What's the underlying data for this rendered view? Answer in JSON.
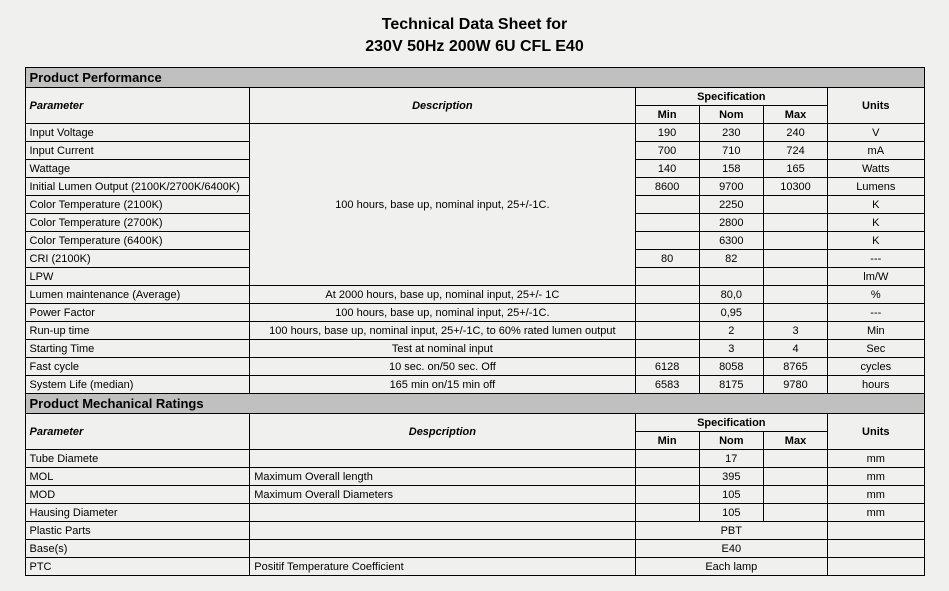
{
  "title_line1": "Technical Data Sheet for",
  "title_line2": "230V 50Hz 200W 6U CFL E40",
  "sections": {
    "performance": {
      "section_title": "Product Performance",
      "headers": {
        "parameter": "Parameter",
        "description": "Description",
        "specification": "Specification",
        "min": "Min",
        "nom": "Nom",
        "max": "Max",
        "units": "Units"
      },
      "shared_desc": "100 hours, base up, nominal input, 25+/-1C.",
      "shared_rows": [
        {
          "param": "Input Voltage",
          "min": "190",
          "nom": "230",
          "max": "240",
          "units": "V"
        },
        {
          "param": "Input Current",
          "min": "700",
          "nom": "710",
          "max": "724",
          "units": "mA"
        },
        {
          "param": "Wattage",
          "min": "140",
          "nom": "158",
          "max": "165",
          "units": "Watts"
        },
        {
          "param": "Initial Lumen Output (2100K/2700K/6400K)",
          "min": "8600",
          "nom": "9700",
          "max": "10300",
          "units": "Lumens"
        },
        {
          "param": "Color Temperature (2100K)",
          "min": "",
          "nom": "2250",
          "max": "",
          "units": "K"
        },
        {
          "param": "Color Temperature (2700K)",
          "min": "",
          "nom": "2800",
          "max": "",
          "units": "K"
        },
        {
          "param": "Color Temperature (6400K)",
          "min": "",
          "nom": "6300",
          "max": "",
          "units": "K"
        },
        {
          "param": "CRI (2100K)",
          "min": "80",
          "nom": "82",
          "max": "",
          "units": "---"
        },
        {
          "param": "LPW",
          "min": "",
          "nom": "",
          "max": "",
          "units": "lm/W"
        }
      ],
      "plain_rows": [
        {
          "param": "Lumen maintenance (Average)",
          "desc": "At 2000 hours, base up, nominal input, 25+/- 1C",
          "min": "",
          "nom": "80,0",
          "max": "",
          "units": "%"
        },
        {
          "param": "Power Factor",
          "desc": "100 hours, base up, nominal input, 25+/-1C.",
          "min": "",
          "nom": "0,95",
          "max": "",
          "units": "---"
        },
        {
          "param": "Run-up time",
          "desc": "100 hours, base up, nominal input, 25+/-1C, to 60% rated lumen output",
          "min": "",
          "nom": "2",
          "max": "3",
          "units": "Min"
        },
        {
          "param": "Starting Time",
          "desc": "Test at nominal input",
          "min": "",
          "nom": "3",
          "max": "4",
          "units": "Sec"
        },
        {
          "param": "Fast cycle",
          "desc": "10 sec. on/50 sec. Off",
          "min": "6128",
          "nom": "8058",
          "max": "8765",
          "units": "cycles"
        },
        {
          "param": "System Life (median)",
          "desc": "165 min on/15 min off",
          "min": "6583",
          "nom": "8175",
          "max": "9780",
          "units": "hours"
        }
      ]
    },
    "mechanical": {
      "section_title": "Product Mechanical Ratings",
      "headers": {
        "parameter": "Parameter",
        "description": "Despcription",
        "specification": "Specification",
        "min": "Min",
        "nom": "Nom",
        "max": "Max",
        "units": "Units"
      },
      "rows": [
        {
          "param": "Tube Diamete",
          "desc": "",
          "min": "",
          "nom": "17",
          "max": "",
          "units": "mm"
        },
        {
          "param": "MOL",
          "desc": "Maximum Overall length",
          "min": "",
          "nom": "395",
          "max": "",
          "units": "mm"
        },
        {
          "param": "MOD",
          "desc": "Maximum Overall Diameters",
          "min": "",
          "nom": "105",
          "max": "",
          "units": "mm"
        },
        {
          "param": "Hausing Diameter",
          "desc": "",
          "min": "",
          "nom": "105",
          "max": "",
          "units": "mm"
        }
      ],
      "span_rows": [
        {
          "param": "Plastic Parts",
          "desc": "",
          "span_text": "PBT",
          "units": ""
        },
        {
          "param": "Base(s)",
          "desc": "",
          "span_text": "E40",
          "units": ""
        },
        {
          "param": "PTC",
          "desc": "Positif Temperature Coefficient",
          "span_text": "Each lamp",
          "units": ""
        }
      ]
    }
  }
}
